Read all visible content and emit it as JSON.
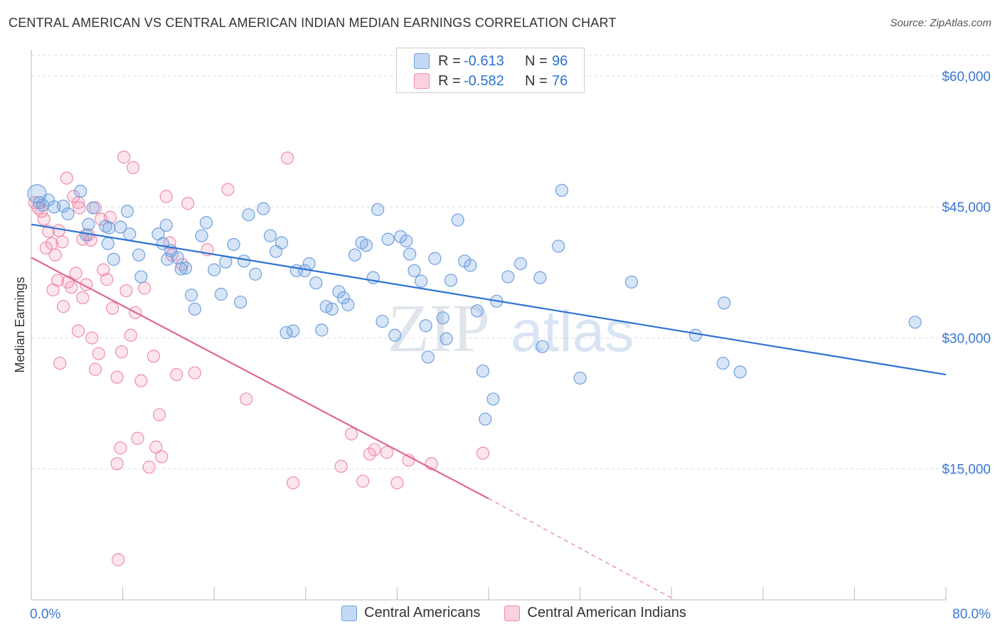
{
  "header": {
    "title": "CENTRAL AMERICAN VS CENTRAL AMERICAN INDIAN MEDIAN EARNINGS CORRELATION CHART",
    "source": "Source: ZipAtlas.com"
  },
  "watermark": {
    "zip": "ZIP",
    "atlas": "atlas"
  },
  "legend": {
    "rows": [
      {
        "r_label": "R =",
        "r_value": "-0.613",
        "n_label": "N =",
        "n_value": "96",
        "color": "#6fa0e0"
      },
      {
        "r_label": "R =",
        "r_value": "-0.582",
        "n_label": "N =",
        "n_value": "76",
        "color": "#f08cab"
      }
    ]
  },
  "bottom_legend": [
    "Central Americans",
    "Central American Indians"
  ],
  "chart_data": {
    "type": "scatter",
    "title": "CENTRAL AMERICAN VS CENTRAL AMERICAN INDIAN MEDIAN EARNINGS CORRELATION CHART",
    "xlabel": "",
    "ylabel": "Median Earnings",
    "xlim": [
      0,
      80
    ],
    "ylim": [
      0,
      63000
    ],
    "x_tick_labels": [
      "0.0%",
      "80.0%"
    ],
    "y_ticks": [
      15000,
      30000,
      45000,
      60000
    ],
    "y_tick_labels": [
      "$15,000",
      "$30,000",
      "$45,000",
      "$60,000"
    ],
    "grid": true,
    "legend_position": "top-center",
    "series": [
      {
        "name": "Central Americans",
        "color": "#6fa0e0",
        "line_color": "#2e72d2",
        "trend": {
          "x": [
            0,
            80
          ],
          "y": [
            43000,
            25800
          ]
        },
        "points": [
          [
            0.5,
            46500
          ],
          [
            0.7,
            45500
          ],
          [
            1.0,
            45200
          ],
          [
            1.5,
            45800
          ],
          [
            2.0,
            45000
          ],
          [
            2.8,
            45100
          ],
          [
            4.3,
            46800
          ],
          [
            5.4,
            44900
          ],
          [
            3.2,
            44200
          ],
          [
            5.0,
            43000
          ],
          [
            4.8,
            41800
          ],
          [
            6.5,
            42800
          ],
          [
            6.8,
            42600
          ],
          [
            7.8,
            42700
          ],
          [
            8.4,
            44500
          ],
          [
            8.6,
            41900
          ],
          [
            11.1,
            41900
          ],
          [
            11.8,
            42900
          ],
          [
            6.7,
            40800
          ],
          [
            7.2,
            39000
          ],
          [
            9.4,
            39500
          ],
          [
            9.6,
            37000
          ],
          [
            11.5,
            40800
          ],
          [
            11.9,
            39000
          ],
          [
            12.2,
            40000
          ],
          [
            12.8,
            39200
          ],
          [
            13.1,
            37900
          ],
          [
            13.5,
            38000
          ],
          [
            14.0,
            34900
          ],
          [
            14.3,
            33300
          ],
          [
            14.9,
            41700
          ],
          [
            15.3,
            43200
          ],
          [
            16.0,
            37800
          ],
          [
            16.6,
            35000
          ],
          [
            17.0,
            38700
          ],
          [
            17.7,
            40700
          ],
          [
            18.3,
            34100
          ],
          [
            18.6,
            38800
          ],
          [
            19.0,
            44100
          ],
          [
            19.6,
            37300
          ],
          [
            20.3,
            44800
          ],
          [
            20.9,
            41700
          ],
          [
            21.4,
            39900
          ],
          [
            21.9,
            40900
          ],
          [
            22.3,
            30600
          ],
          [
            22.9,
            30800
          ],
          [
            23.2,
            37700
          ],
          [
            23.9,
            37700
          ],
          [
            24.3,
            38500
          ],
          [
            24.9,
            36300
          ],
          [
            25.4,
            30900
          ],
          [
            25.8,
            33600
          ],
          [
            26.3,
            33300
          ],
          [
            26.9,
            35300
          ],
          [
            27.3,
            34600
          ],
          [
            27.7,
            33800
          ],
          [
            28.3,
            39500
          ],
          [
            28.9,
            40900
          ],
          [
            29.3,
            40600
          ],
          [
            29.9,
            36900
          ],
          [
            30.3,
            44700
          ],
          [
            30.7,
            31900
          ],
          [
            31.2,
            41300
          ],
          [
            31.8,
            30300
          ],
          [
            32.3,
            41600
          ],
          [
            32.8,
            41100
          ],
          [
            33.1,
            39600
          ],
          [
            33.5,
            37700
          ],
          [
            34.1,
            36500
          ],
          [
            34.5,
            31400
          ],
          [
            34.7,
            27800
          ],
          [
            35.3,
            39100
          ],
          [
            36.0,
            32300
          ],
          [
            36.3,
            29900
          ],
          [
            36.7,
            36600
          ],
          [
            37.3,
            43500
          ],
          [
            37.9,
            38800
          ],
          [
            38.4,
            38300
          ],
          [
            39.0,
            33100
          ],
          [
            39.5,
            26200
          ],
          [
            40.4,
            23000
          ],
          [
            39.7,
            20700
          ],
          [
            40.7,
            34200
          ],
          [
            41.7,
            37000
          ],
          [
            42.8,
            38500
          ],
          [
            44.5,
            36900
          ],
          [
            44.7,
            29000
          ],
          [
            46.1,
            40500
          ],
          [
            48.0,
            25400
          ],
          [
            46.4,
            46900
          ],
          [
            52.5,
            36400
          ],
          [
            58.1,
            30300
          ],
          [
            60.5,
            27100
          ],
          [
            60.6,
            34000
          ],
          [
            62.0,
            26100
          ],
          [
            77.3,
            31800
          ]
        ]
      },
      {
        "name": "Central American Indians",
        "color": "#f08cab",
        "line_color": "#e0688f",
        "trend": {
          "x": [
            0,
            40
          ],
          "y": [
            39200,
            11600
          ]
        },
        "trend_ext": {
          "x": [
            40,
            56.3
          ],
          "y": [
            11600,
            0
          ]
        },
        "points": [
          [
            0.3,
            45500
          ],
          [
            0.6,
            44900
          ],
          [
            0.9,
            44500
          ],
          [
            1.1,
            43600
          ],
          [
            1.5,
            42200
          ],
          [
            1.8,
            40800
          ],
          [
            1.3,
            40300
          ],
          [
            2.1,
            39500
          ],
          [
            2.4,
            42300
          ],
          [
            2.7,
            41000
          ],
          [
            2.3,
            36600
          ],
          [
            1.9,
            35500
          ],
          [
            2.8,
            33600
          ],
          [
            3.1,
            48300
          ],
          [
            3.2,
            36400
          ],
          [
            3.5,
            35800
          ],
          [
            3.7,
            46200
          ],
          [
            3.9,
            37400
          ],
          [
            4.1,
            45500
          ],
          [
            4.2,
            44900
          ],
          [
            4.5,
            41300
          ],
          [
            4.5,
            34600
          ],
          [
            4.8,
            36100
          ],
          [
            5.0,
            41800
          ],
          [
            5.2,
            41200
          ],
          [
            5.3,
            30000
          ],
          [
            5.6,
            26400
          ],
          [
            5.9,
            28200
          ],
          [
            5.6,
            44900
          ],
          [
            6.1,
            43600
          ],
          [
            6.3,
            37800
          ],
          [
            6.6,
            36700
          ],
          [
            6.9,
            43800
          ],
          [
            7.1,
            33400
          ],
          [
            7.5,
            25500
          ],
          [
            7.9,
            28400
          ],
          [
            7.8,
            17400
          ],
          [
            8.1,
            50700
          ],
          [
            8.3,
            35400
          ],
          [
            8.7,
            30300
          ],
          [
            8.9,
            49500
          ],
          [
            9.1,
            32900
          ],
          [
            9.3,
            18500
          ],
          [
            9.6,
            25100
          ],
          [
            9.9,
            35700
          ],
          [
            10.3,
            15200
          ],
          [
            10.7,
            27900
          ],
          [
            10.9,
            17500
          ],
          [
            11.2,
            21200
          ],
          [
            11.4,
            16400
          ],
          [
            11.8,
            46200
          ],
          [
            12.1,
            40900
          ],
          [
            12.3,
            39500
          ],
          [
            12.7,
            25800
          ],
          [
            13.2,
            38400
          ],
          [
            13.7,
            45400
          ],
          [
            14.3,
            26000
          ],
          [
            15.4,
            40100
          ],
          [
            17.2,
            47000
          ],
          [
            18.8,
            23000
          ],
          [
            22.4,
            50600
          ],
          [
            22.9,
            13400
          ],
          [
            27.1,
            15300
          ],
          [
            28.0,
            19000
          ],
          [
            29.0,
            13600
          ],
          [
            29.6,
            16700
          ],
          [
            30.0,
            17200
          ],
          [
            31.1,
            16900
          ],
          [
            32.0,
            13400
          ],
          [
            33.0,
            16000
          ],
          [
            35.0,
            15600
          ],
          [
            39.5,
            16800
          ],
          [
            2.5,
            27100
          ],
          [
            4.1,
            30800
          ],
          [
            7.5,
            15600
          ],
          [
            7.6,
            4600
          ]
        ]
      }
    ]
  }
}
